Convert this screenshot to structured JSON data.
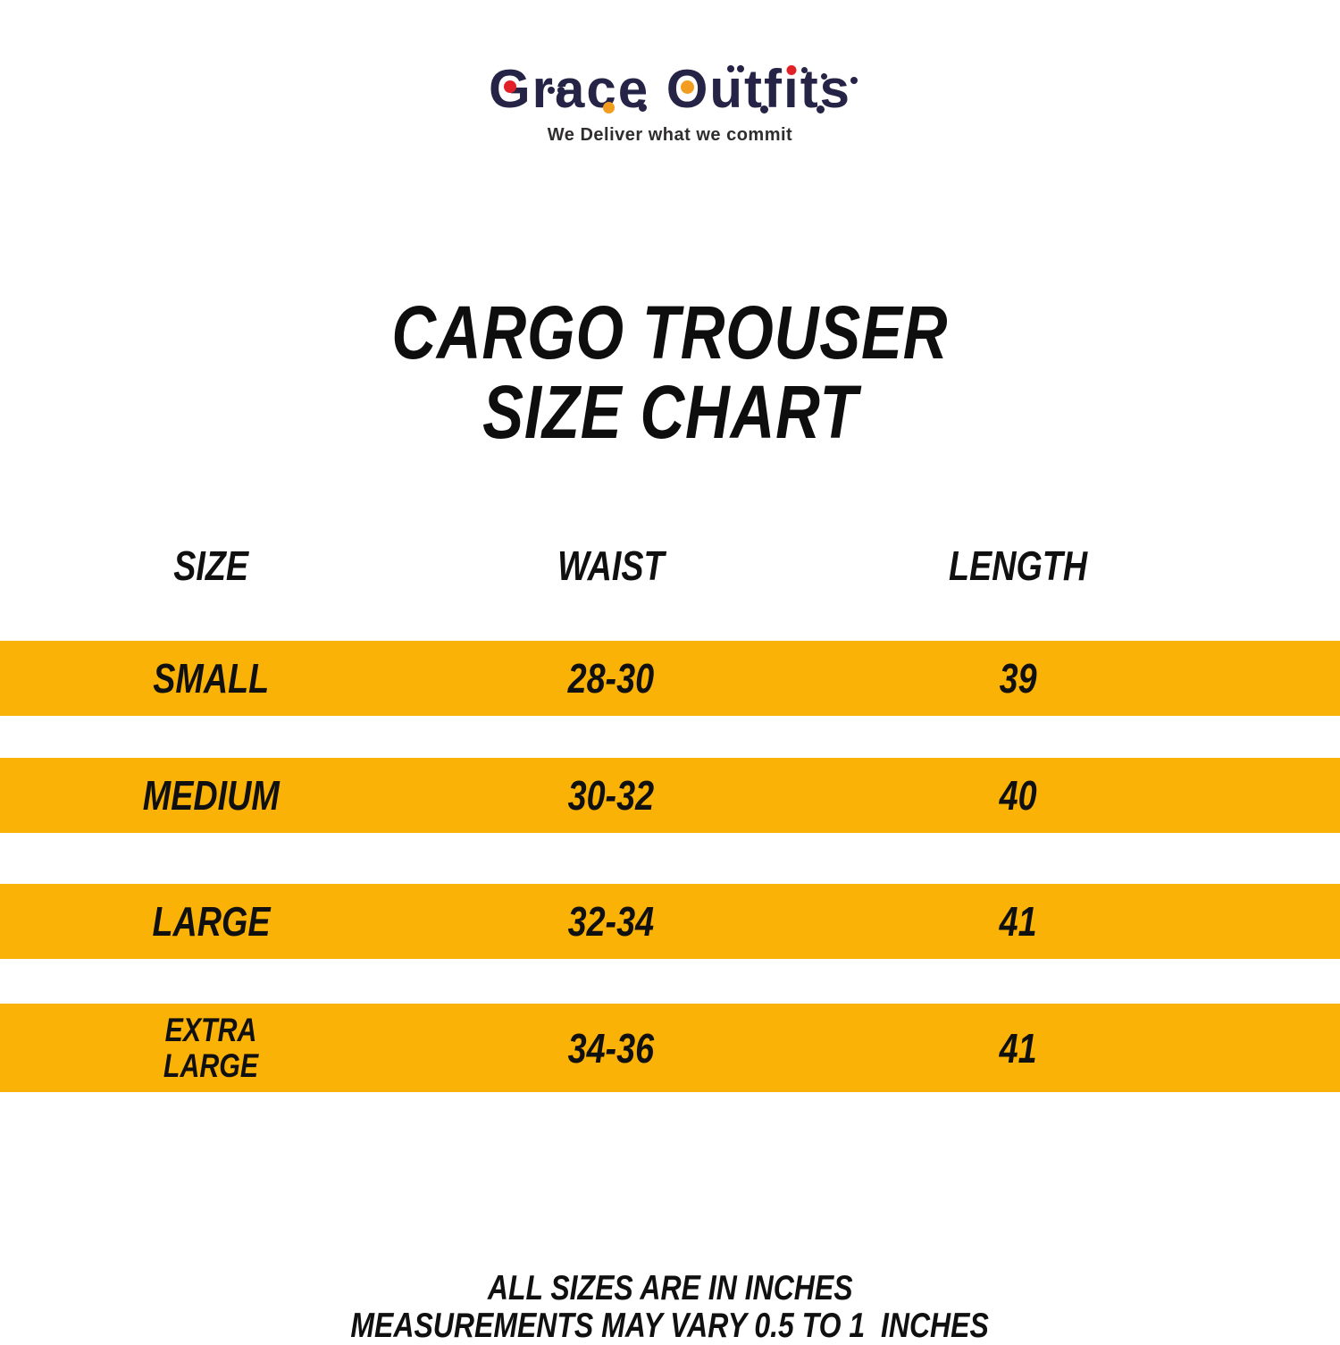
{
  "theme": {
    "navy": "#252346",
    "red": "#e02128",
    "orange": "#f29d1f",
    "yellow": "#fbb206",
    "ink": "#121212",
    "gray": "#2f2d2d"
  },
  "brand": {
    "name": "Grace Outfits",
    "logo_pre": "Grace Outf",
    "logo_i": "ı",
    "logo_post": "ts",
    "tagline": "We Deliver what we commit"
  },
  "title": {
    "line1": "CARGO TROUSER",
    "line2": "SIZE CHART"
  },
  "table": {
    "headers": [
      "SIZE",
      "WAIST",
      "LENGTH"
    ],
    "rows": [
      {
        "size": "SMALL",
        "waist": "28-30",
        "length": "39"
      },
      {
        "size": "MEDIUM",
        "waist": "30-32",
        "length": "40"
      },
      {
        "size": "LARGE",
        "waist": "32-34",
        "length": "41"
      },
      {
        "size": "EXTRA LARGE",
        "waist": "34-36",
        "length": "41"
      }
    ]
  },
  "chart_data": {
    "type": "table",
    "title": "CARGO TROUSER SIZE CHART",
    "columns": [
      "SIZE",
      "WAIST",
      "LENGTH"
    ],
    "rows": [
      [
        "SMALL",
        "28-30",
        "39"
      ],
      [
        "MEDIUM",
        "30-32",
        "40"
      ],
      [
        "LARGE",
        "32-34",
        "41"
      ],
      [
        "EXTRA LARGE",
        "34-36",
        "41"
      ]
    ],
    "units": "inches"
  },
  "footer": {
    "line1": "ALL SIZES ARE IN INCHES",
    "line2": "MEASUREMENTS MAY VARY 0.5 TO 1  INCHES"
  }
}
